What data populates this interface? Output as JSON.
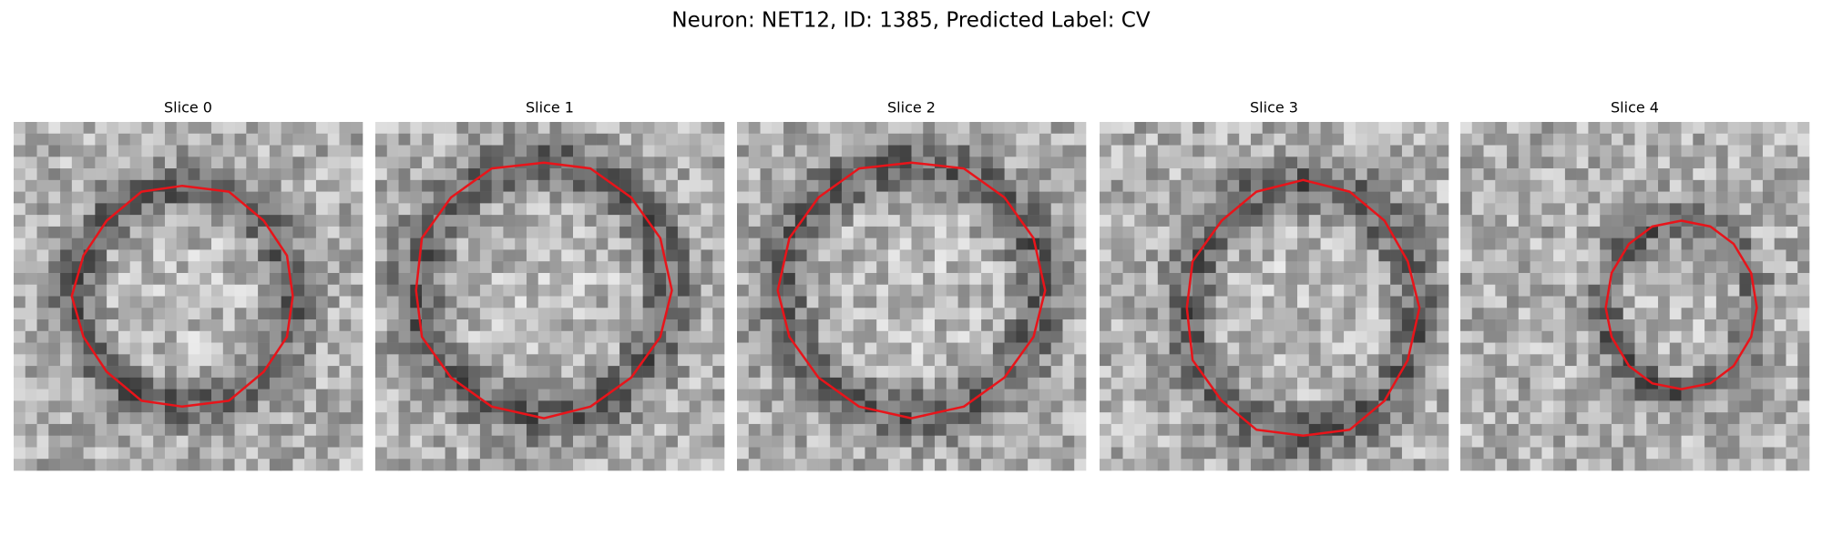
{
  "title": "Neuron: NET12, ID: 1385, Predicted Label: CV",
  "panels": [
    {
      "title": "Slice 0"
    },
    {
      "title": "Slice 1"
    },
    {
      "title": "Slice 2"
    },
    {
      "title": "Slice 3"
    },
    {
      "title": "Slice 4"
    }
  ]
}
